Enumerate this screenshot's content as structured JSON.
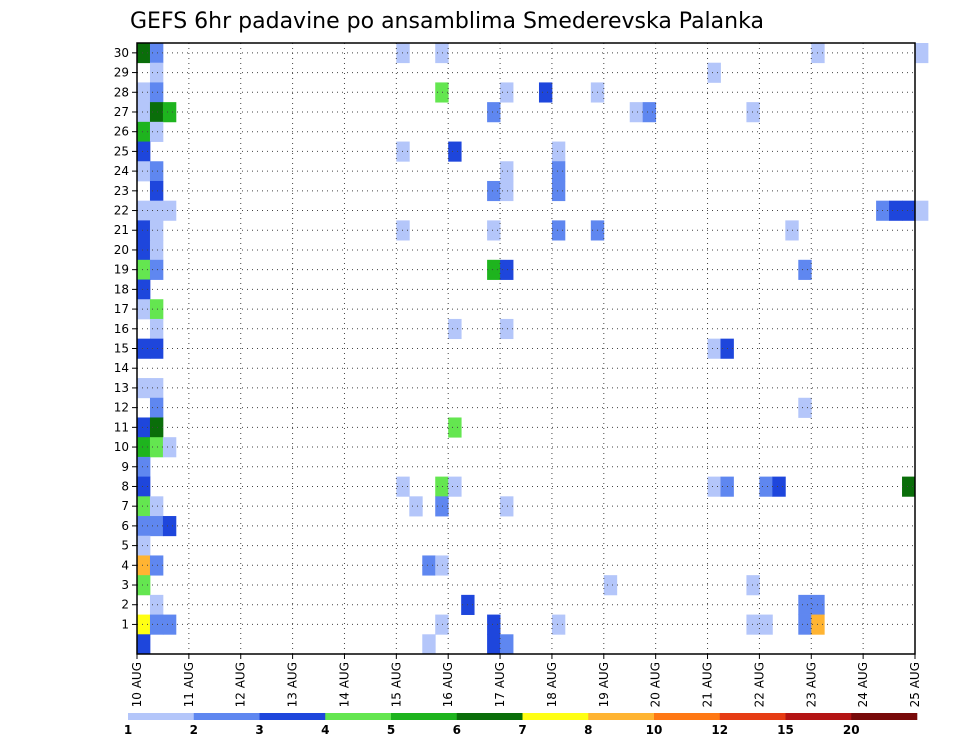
{
  "chart_data": {
    "type": "heatmap",
    "title": "GEFS 6hr padavine po ansamblima Smederevska Palanka",
    "xlabel": "",
    "ylabel": "",
    "x_tick_labels": [
      "10 AUG",
      "11 AUG",
      "12 AUG",
      "13 AUG",
      "14 AUG",
      "15 AUG",
      "16 AUG",
      "17 AUG",
      "18 AUG",
      "19 AUG",
      "20 AUG",
      "21 AUG",
      "22 AUG",
      "23 AUG",
      "24 AUG",
      "25 AUG"
    ],
    "y_tick_labels": [
      "1",
      "2",
      "3",
      "4",
      "5",
      "6",
      "7",
      "8",
      "9",
      "10",
      "11",
      "12",
      "13",
      "14",
      "15",
      "16",
      "17",
      "18",
      "19",
      "20",
      "21",
      "22",
      "23",
      "24",
      "25",
      "26",
      "27",
      "28",
      "29",
      "30"
    ],
    "time_steps_per_day": 4,
    "time_steps": 61,
    "grid": true,
    "colorbar": {
      "placement": "bottom",
      "tick_labels": [
        "1",
        "2",
        "3",
        "4",
        "5",
        "6",
        "7",
        "8",
        "10",
        "12",
        "15",
        "20"
      ],
      "colors": [
        "#b4c6fa",
        "#5f87f0",
        "#1e46dc",
        "#64e650",
        "#1eb41e",
        "#0a6e0a",
        "#ffff14",
        "#ffb432",
        "#ff7814",
        "#e63c14",
        "#b41414",
        "#780a0a"
      ]
    },
    "cells": [
      {
        "member": 30,
        "step": 0,
        "value": 6.5
      },
      {
        "member": 30,
        "step": 1,
        "value": 2.5
      },
      {
        "member": 30,
        "step": 20,
        "value": 1.5
      },
      {
        "member": 30,
        "step": 23,
        "value": 1.5
      },
      {
        "member": 30,
        "step": 52,
        "value": 1.5
      },
      {
        "member": 30,
        "step": 60,
        "value": 1.5
      },
      {
        "member": 29,
        "step": 1,
        "value": 1.5
      },
      {
        "member": 29,
        "step": 44,
        "value": 1.5
      },
      {
        "member": 28,
        "step": 0,
        "value": 1.5
      },
      {
        "member": 28,
        "step": 1,
        "value": 2.5
      },
      {
        "member": 28,
        "step": 23,
        "value": 4.5
      },
      {
        "member": 28,
        "step": 28,
        "value": 1.5
      },
      {
        "member": 28,
        "step": 31,
        "value": 3.5
      },
      {
        "member": 28,
        "step": 35,
        "value": 1.5
      },
      {
        "member": 27,
        "step": 0,
        "value": 1.5
      },
      {
        "member": 27,
        "step": 1,
        "value": 6.5
      },
      {
        "member": 27,
        "step": 2,
        "value": 5.5
      },
      {
        "member": 27,
        "step": 27,
        "value": 2.5
      },
      {
        "member": 27,
        "step": 38,
        "value": 1.5
      },
      {
        "member": 27,
        "step": 39,
        "value": 2.5
      },
      {
        "member": 27,
        "step": 47,
        "value": 1.5
      },
      {
        "member": 26,
        "step": 0,
        "value": 5.5
      },
      {
        "member": 26,
        "step": 1,
        "value": 1.5
      },
      {
        "member": 25,
        "step": 0,
        "value": 3.5
      },
      {
        "member": 25,
        "step": 20,
        "value": 1.5
      },
      {
        "member": 25,
        "step": 24,
        "value": 3.5
      },
      {
        "member": 25,
        "step": 32,
        "value": 1.5
      },
      {
        "member": 24,
        "step": 0,
        "value": 1.5
      },
      {
        "member": 24,
        "step": 1,
        "value": 2.5
      },
      {
        "member": 24,
        "step": 28,
        "value": 1.5
      },
      {
        "member": 24,
        "step": 32,
        "value": 2.5
      },
      {
        "member": 23,
        "step": 1,
        "value": 3.5
      },
      {
        "member": 23,
        "step": 27,
        "value": 2.5
      },
      {
        "member": 23,
        "step": 28,
        "value": 1.5
      },
      {
        "member": 23,
        "step": 32,
        "value": 2.5
      },
      {
        "member": 22,
        "step": 0,
        "value": 1.5
      },
      {
        "member": 22,
        "step": 1,
        "value": 1.5
      },
      {
        "member": 22,
        "step": 2,
        "value": 1.5
      },
      {
        "member": 22,
        "step": 57,
        "value": 2.5
      },
      {
        "member": 22,
        "step": 58,
        "value": 3.5
      },
      {
        "member": 22,
        "step": 59,
        "value": 3.5
      },
      {
        "member": 22,
        "step": 60,
        "value": 1.5
      },
      {
        "member": 21,
        "step": 0,
        "value": 3.5
      },
      {
        "member": 21,
        "step": 1,
        "value": 1.5
      },
      {
        "member": 21,
        "step": 20,
        "value": 1.5
      },
      {
        "member": 21,
        "step": 27,
        "value": 1.5
      },
      {
        "member": 21,
        "step": 32,
        "value": 2.5
      },
      {
        "member": 21,
        "step": 35,
        "value": 2.5
      },
      {
        "member": 21,
        "step": 50,
        "value": 1.5
      },
      {
        "member": 20,
        "step": 0,
        "value": 3.5
      },
      {
        "member": 20,
        "step": 1,
        "value": 1.5
      },
      {
        "member": 19,
        "step": 0,
        "value": 4.5
      },
      {
        "member": 19,
        "step": 1,
        "value": 2.5
      },
      {
        "member": 19,
        "step": 27,
        "value": 5.5
      },
      {
        "member": 19,
        "step": 28,
        "value": 3.5
      },
      {
        "member": 19,
        "step": 51,
        "value": 2.5
      },
      {
        "member": 18,
        "step": 0,
        "value": 3.5
      },
      {
        "member": 17,
        "step": 0,
        "value": 1.5
      },
      {
        "member": 17,
        "step": 1,
        "value": 4.5
      },
      {
        "member": 16,
        "step": 1,
        "value": 1.5
      },
      {
        "member": 16,
        "step": 24,
        "value": 1.5
      },
      {
        "member": 16,
        "step": 28,
        "value": 1.5
      },
      {
        "member": 15,
        "step": 0,
        "value": 3.5
      },
      {
        "member": 15,
        "step": 1,
        "value": 3.5
      },
      {
        "member": 15,
        "step": 44,
        "value": 1.5
      },
      {
        "member": 15,
        "step": 45,
        "value": 3.5
      },
      {
        "member": 13,
        "step": 0,
        "value": 1.5
      },
      {
        "member": 13,
        "step": 1,
        "value": 1.5
      },
      {
        "member": 12,
        "step": 1,
        "value": 2.5
      },
      {
        "member": 12,
        "step": 51,
        "value": 1.5
      },
      {
        "member": 11,
        "step": 0,
        "value": 3.5
      },
      {
        "member": 11,
        "step": 1,
        "value": 6.5
      },
      {
        "member": 11,
        "step": 24,
        "value": 4.5
      },
      {
        "member": 10,
        "step": 0,
        "value": 5.5
      },
      {
        "member": 10,
        "step": 1,
        "value": 4.5
      },
      {
        "member": 10,
        "step": 2,
        "value": 1.5
      },
      {
        "member": 9,
        "step": 0,
        "value": 2.5
      },
      {
        "member": 8,
        "step": 0,
        "value": 3.5
      },
      {
        "member": 8,
        "step": 20,
        "value": 1.5
      },
      {
        "member": 8,
        "step": 23,
        "value": 4.5
      },
      {
        "member": 8,
        "step": 24,
        "value": 1.5
      },
      {
        "member": 8,
        "step": 44,
        "value": 1.5
      },
      {
        "member": 8,
        "step": 45,
        "value": 2.5
      },
      {
        "member": 8,
        "step": 48,
        "value": 2.5
      },
      {
        "member": 8,
        "step": 49,
        "value": 3.5
      },
      {
        "member": 8,
        "step": 59,
        "value": 6.5
      },
      {
        "member": 7,
        "step": 0,
        "value": 4.5
      },
      {
        "member": 7,
        "step": 1,
        "value": 1.5
      },
      {
        "member": 7,
        "step": 21,
        "value": 1.5
      },
      {
        "member": 7,
        "step": 23,
        "value": 2.5
      },
      {
        "member": 7,
        "step": 28,
        "value": 1.5
      },
      {
        "member": 6,
        "step": 0,
        "value": 2.5
      },
      {
        "member": 6,
        "step": 1,
        "value": 2.5
      },
      {
        "member": 6,
        "step": 2,
        "value": 3.5
      },
      {
        "member": 5,
        "step": 0,
        "value": 1.5
      },
      {
        "member": 4,
        "step": 0,
        "value": 9
      },
      {
        "member": 4,
        "step": 1,
        "value": 2.5
      },
      {
        "member": 4,
        "step": 22,
        "value": 2.5
      },
      {
        "member": 4,
        "step": 23,
        "value": 1.5
      },
      {
        "member": 3,
        "step": 0,
        "value": 4.5
      },
      {
        "member": 3,
        "step": 36,
        "value": 1.5
      },
      {
        "member": 3,
        "step": 47,
        "value": 1.5
      },
      {
        "member": 2,
        "step": 1,
        "value": 1.5
      },
      {
        "member": 2,
        "step": 25,
        "value": 3.5
      },
      {
        "member": 2,
        "step": 51,
        "value": 2.5
      },
      {
        "member": 2,
        "step": 52,
        "value": 2.5
      },
      {
        "member": 1,
        "step": 0,
        "value": 7.5
      },
      {
        "member": 1,
        "step": 1,
        "value": 2.5
      },
      {
        "member": 1,
        "step": 2,
        "value": 2.5
      },
      {
        "member": 1,
        "step": 23,
        "value": 1.5
      },
      {
        "member": 1,
        "step": 27,
        "value": 3.5
      },
      {
        "member": 1,
        "step": 32,
        "value": 1.5
      },
      {
        "member": 1,
        "step": 47,
        "value": 1.5
      },
      {
        "member": 1,
        "step": 48,
        "value": 1.5
      },
      {
        "member": 1,
        "step": 51,
        "value": 2.5
      },
      {
        "member": 1,
        "step": 52,
        "value": 9
      },
      {
        "member": 0,
        "step": 0,
        "value": 3.5
      },
      {
        "member": 0,
        "step": 22,
        "value": 1.5
      },
      {
        "member": 0,
        "step": 27,
        "value": 3.5
      },
      {
        "member": 0,
        "step": 28,
        "value": 2.5
      }
    ]
  }
}
